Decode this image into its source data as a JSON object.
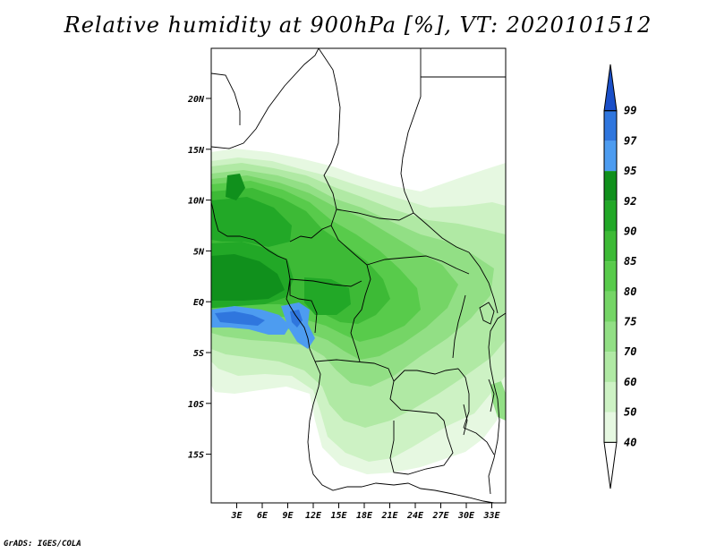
{
  "title": "Relative humidity at 900hPa [%], VT: 2020101512",
  "credit": "GrADS: IGES/COLA",
  "map": {
    "lon_labels": [
      "3E",
      "6E",
      "9E",
      "12E",
      "15E",
      "18E",
      "21E",
      "24E",
      "27E",
      "30E",
      "33E"
    ],
    "lat_labels": [
      "20N",
      "15N",
      "10N",
      "5N",
      "EQ",
      "5S",
      "10S",
      "15S"
    ]
  },
  "colorbar": {
    "levels": [
      "40",
      "50",
      "60",
      "70",
      "75",
      "80",
      "85",
      "90",
      "92",
      "95",
      "97",
      "99"
    ],
    "colors": [
      "#ffffff",
      "#e6f8e1",
      "#cdf2c4",
      "#b0e9a4",
      "#92df85",
      "#75d566",
      "#58cb4b",
      "#3dba36",
      "#22a827",
      "#10901c",
      "#4d9cf0",
      "#2f76de",
      "#1a4fc8"
    ]
  }
}
